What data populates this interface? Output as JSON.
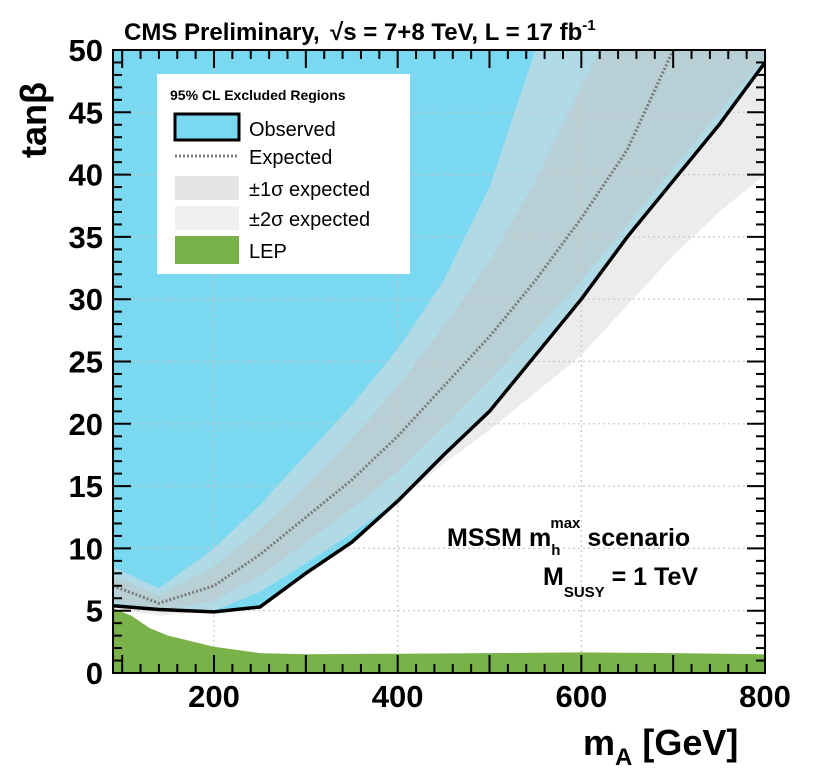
{
  "chart_data": {
    "type": "area",
    "title": "CMS Preliminary, √s = 7+8 TeV, L = 17 fb⁻¹",
    "title_parts": {
      "experiment": "CMS Preliminary,",
      "energy_label": "s = 7+8 TeV, L = 17 fb",
      "lumi_exp": "-1"
    },
    "xlabel": "m",
    "xlabel_sub": "A",
    "xlabel_unit": "[GeV]",
    "ylabel": "tanβ",
    "xlim": [
      90,
      800
    ],
    "ylim": [
      0,
      50
    ],
    "xticks": [
      200,
      400,
      600,
      800
    ],
    "yticks": [
      0,
      5,
      10,
      15,
      20,
      25,
      30,
      35,
      40,
      45,
      50
    ],
    "grid": true,
    "legend": {
      "title": "95% CL Excluded Regions",
      "position": "top-left",
      "entries": [
        {
          "label": "Observed",
          "style": "observed"
        },
        {
          "label": "Expected",
          "style": "expected"
        },
        {
          "label": "±1σ  expected",
          "style": "band1"
        },
        {
          "label": "±2σ  expected",
          "style": "band2"
        },
        {
          "label": "LEP",
          "style": "lep"
        }
      ]
    },
    "annotations": {
      "scenario": {
        "pre": "MSSM m",
        "sub": "h",
        "sup": "max",
        "post": " scenario"
      },
      "msusy": {
        "pre": "M",
        "sub": "SUSY",
        "post": " = 1 TeV"
      }
    },
    "colors": {
      "observed_fill": "#7ad8f0",
      "observed_line": "#000000",
      "expected_line": "#7a7a7a",
      "band1": "#c0c0c0",
      "band2": "#dcdcdc",
      "lep": "#7ab24a",
      "grid": "#c8c8c8"
    },
    "series": [
      {
        "name": "Observed",
        "x": [
          90,
          140,
          200,
          250,
          300,
          350,
          400,
          450,
          500,
          550,
          600,
          650,
          700,
          750,
          800
        ],
        "y": [
          5.4,
          5.1,
          4.9,
          5.3,
          8.0,
          10.5,
          13.8,
          17.5,
          21.0,
          25.5,
          30.0,
          35.0,
          39.5,
          44.0,
          49.0
        ]
      },
      {
        "name": "Expected",
        "x": [
          90,
          140,
          200,
          250,
          300,
          350,
          400,
          450,
          500,
          550,
          600,
          650,
          700
        ],
        "y": [
          7.0,
          5.6,
          7.0,
          9.5,
          12.5,
          15.5,
          19.0,
          23.0,
          27.0,
          31.5,
          36.5,
          42.0,
          50.0
        ]
      },
      {
        "name": "+1sigma",
        "x": [
          90,
          140,
          200,
          250,
          300,
          350,
          400,
          450,
          500,
          550,
          620
        ],
        "y": [
          7.8,
          6.2,
          8.5,
          11.5,
          15.0,
          18.8,
          23.0,
          27.8,
          33.0,
          39.5,
          50.0
        ]
      },
      {
        "name": "-1sigma",
        "x": [
          90,
          140,
          200,
          250,
          300,
          350,
          400,
          450,
          500,
          550,
          600,
          650,
          700,
          750,
          800
        ],
        "y": [
          5.8,
          5.0,
          5.8,
          7.8,
          10.5,
          13.2,
          16.2,
          19.8,
          23.5,
          27.5,
          31.5,
          36.0,
          40.5,
          45.0,
          49.5
        ]
      },
      {
        "name": "+2sigma",
        "x": [
          90,
          140,
          200,
          250,
          300,
          350,
          400,
          450,
          500,
          550
        ],
        "y": [
          8.5,
          6.8,
          10.0,
          13.5,
          17.5,
          21.5,
          26.0,
          31.5,
          39.0,
          50.0
        ]
      },
      {
        "name": "-2sigma",
        "x": [
          90,
          140,
          200,
          250,
          300,
          350,
          400,
          450,
          500,
          550,
          600,
          650,
          700,
          750,
          800
        ],
        "y": [
          5.2,
          4.6,
          5.0,
          6.5,
          8.8,
          11.2,
          13.8,
          16.8,
          19.5,
          22.5,
          25.5,
          29.5,
          33.5,
          37.0,
          40.0
        ]
      },
      {
        "name": "LEP",
        "x": [
          90,
          110,
          130,
          150,
          200,
          250,
          300,
          400,
          500,
          600,
          700,
          800
        ],
        "y": [
          5.2,
          4.6,
          3.6,
          3.0,
          2.1,
          1.6,
          1.5,
          1.55,
          1.6,
          1.65,
          1.6,
          1.5
        ]
      }
    ]
  }
}
